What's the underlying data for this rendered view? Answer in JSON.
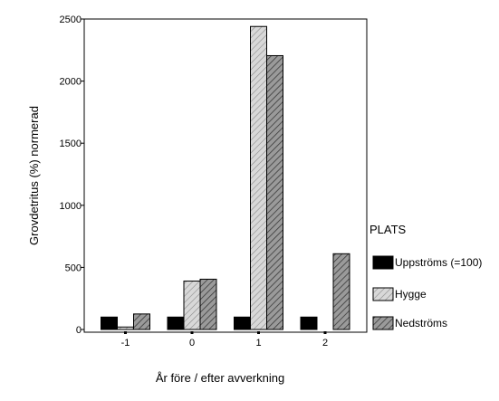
{
  "chart_data": {
    "type": "bar",
    "title": "",
    "xlabel": "År före / efter avverkning",
    "ylabel": "Grovdetritus (%) normerad",
    "categories": [
      "-1",
      "0",
      "1",
      "2"
    ],
    "yticks": [
      "0",
      "500",
      "1000",
      "1500",
      "2000",
      "2500"
    ],
    "ylim": [
      0,
      2500
    ],
    "legend": {
      "title": "PLATS",
      "position": "right"
    },
    "series": [
      {
        "name": "Uppströms (=100)",
        "values": [
          100,
          100,
          100,
          100
        ],
        "color": "#000000",
        "pattern": "solid"
      },
      {
        "name": "Hygge",
        "values": [
          20,
          390,
          2440,
          0
        ],
        "color": "#c8c8c8",
        "pattern": "light-hatch"
      },
      {
        "name": "Nedströms",
        "values": [
          125,
          405,
          2205,
          610
        ],
        "color": "#8c8c8c",
        "pattern": "dark-hatch"
      }
    ]
  }
}
